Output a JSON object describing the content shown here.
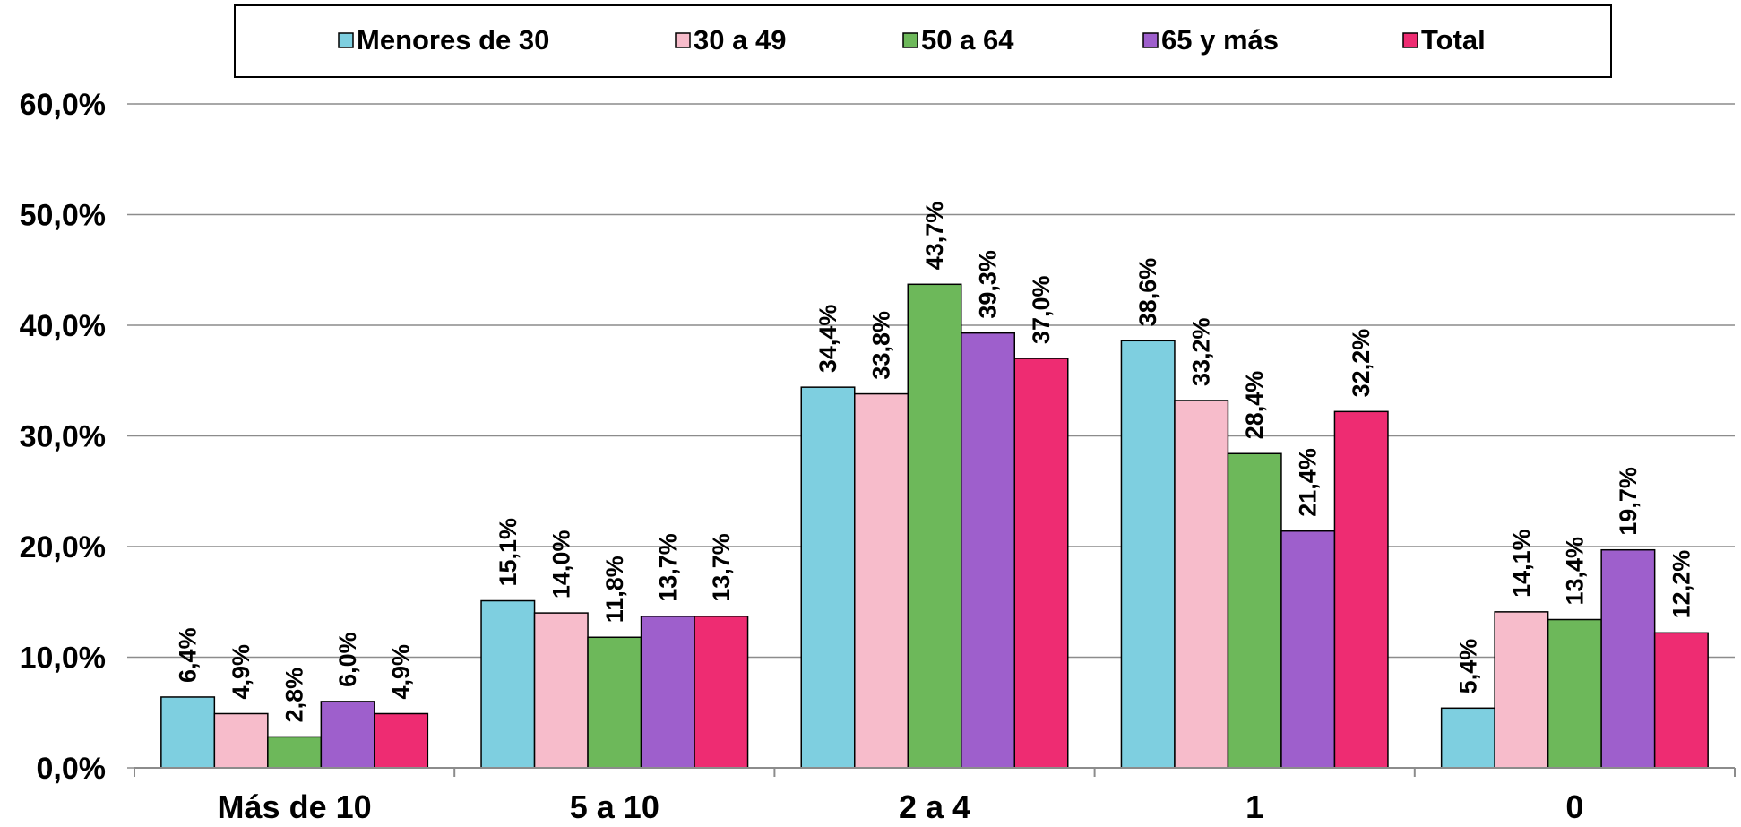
{
  "chart_data": {
    "type": "bar",
    "categories": [
      "Más de 10",
      "5 a 10",
      "2 a 4",
      "1",
      "0"
    ],
    "series": [
      {
        "name": "Menores de 30",
        "color": "#7ECFE0",
        "values": [
          6.4,
          15.1,
          34.4,
          38.6,
          5.4
        ],
        "labels": [
          "6,4%",
          "15,1%",
          "34,4%",
          "38,6%",
          "5,4%"
        ]
      },
      {
        "name": "30 a 49",
        "color": "#F7BCCB",
        "values": [
          4.9,
          14.0,
          33.8,
          33.2,
          14.1
        ],
        "labels": [
          "4,9%",
          "14,0%",
          "33,8%",
          "33,2%",
          "14,1%"
        ]
      },
      {
        "name": "50 a 64",
        "color": "#6DB85A",
        "values": [
          2.8,
          11.8,
          43.7,
          28.4,
          13.4
        ],
        "labels": [
          "2,8%",
          "11,8%",
          "43,7%",
          "28,4%",
          "13,4%"
        ]
      },
      {
        "name": "65 y más",
        "color": "#9E5FCC",
        "values": [
          6.0,
          13.7,
          39.3,
          21.4,
          19.7
        ],
        "labels": [
          "6,0%",
          "13,7%",
          "39,3%",
          "21,4%",
          "19,7%"
        ]
      },
      {
        "name": "Total",
        "color": "#EE2C72",
        "values": [
          4.9,
          13.7,
          37.0,
          32.2,
          12.2
        ],
        "labels": [
          "4,9%",
          "13,7%",
          "37,0%",
          "32,2%",
          "12,2%"
        ]
      }
    ],
    "y_ticks": [
      0,
      10,
      20,
      30,
      40,
      50,
      60
    ],
    "y_tick_labels": [
      "0,0%",
      "10,0%",
      "20,0%",
      "30,0%",
      "40,0%",
      "50,0%",
      "60,0%"
    ],
    "ylim": [
      0,
      60
    ],
    "grid": true,
    "legend_position": "top",
    "title": "",
    "xlabel": "",
    "ylabel": ""
  }
}
